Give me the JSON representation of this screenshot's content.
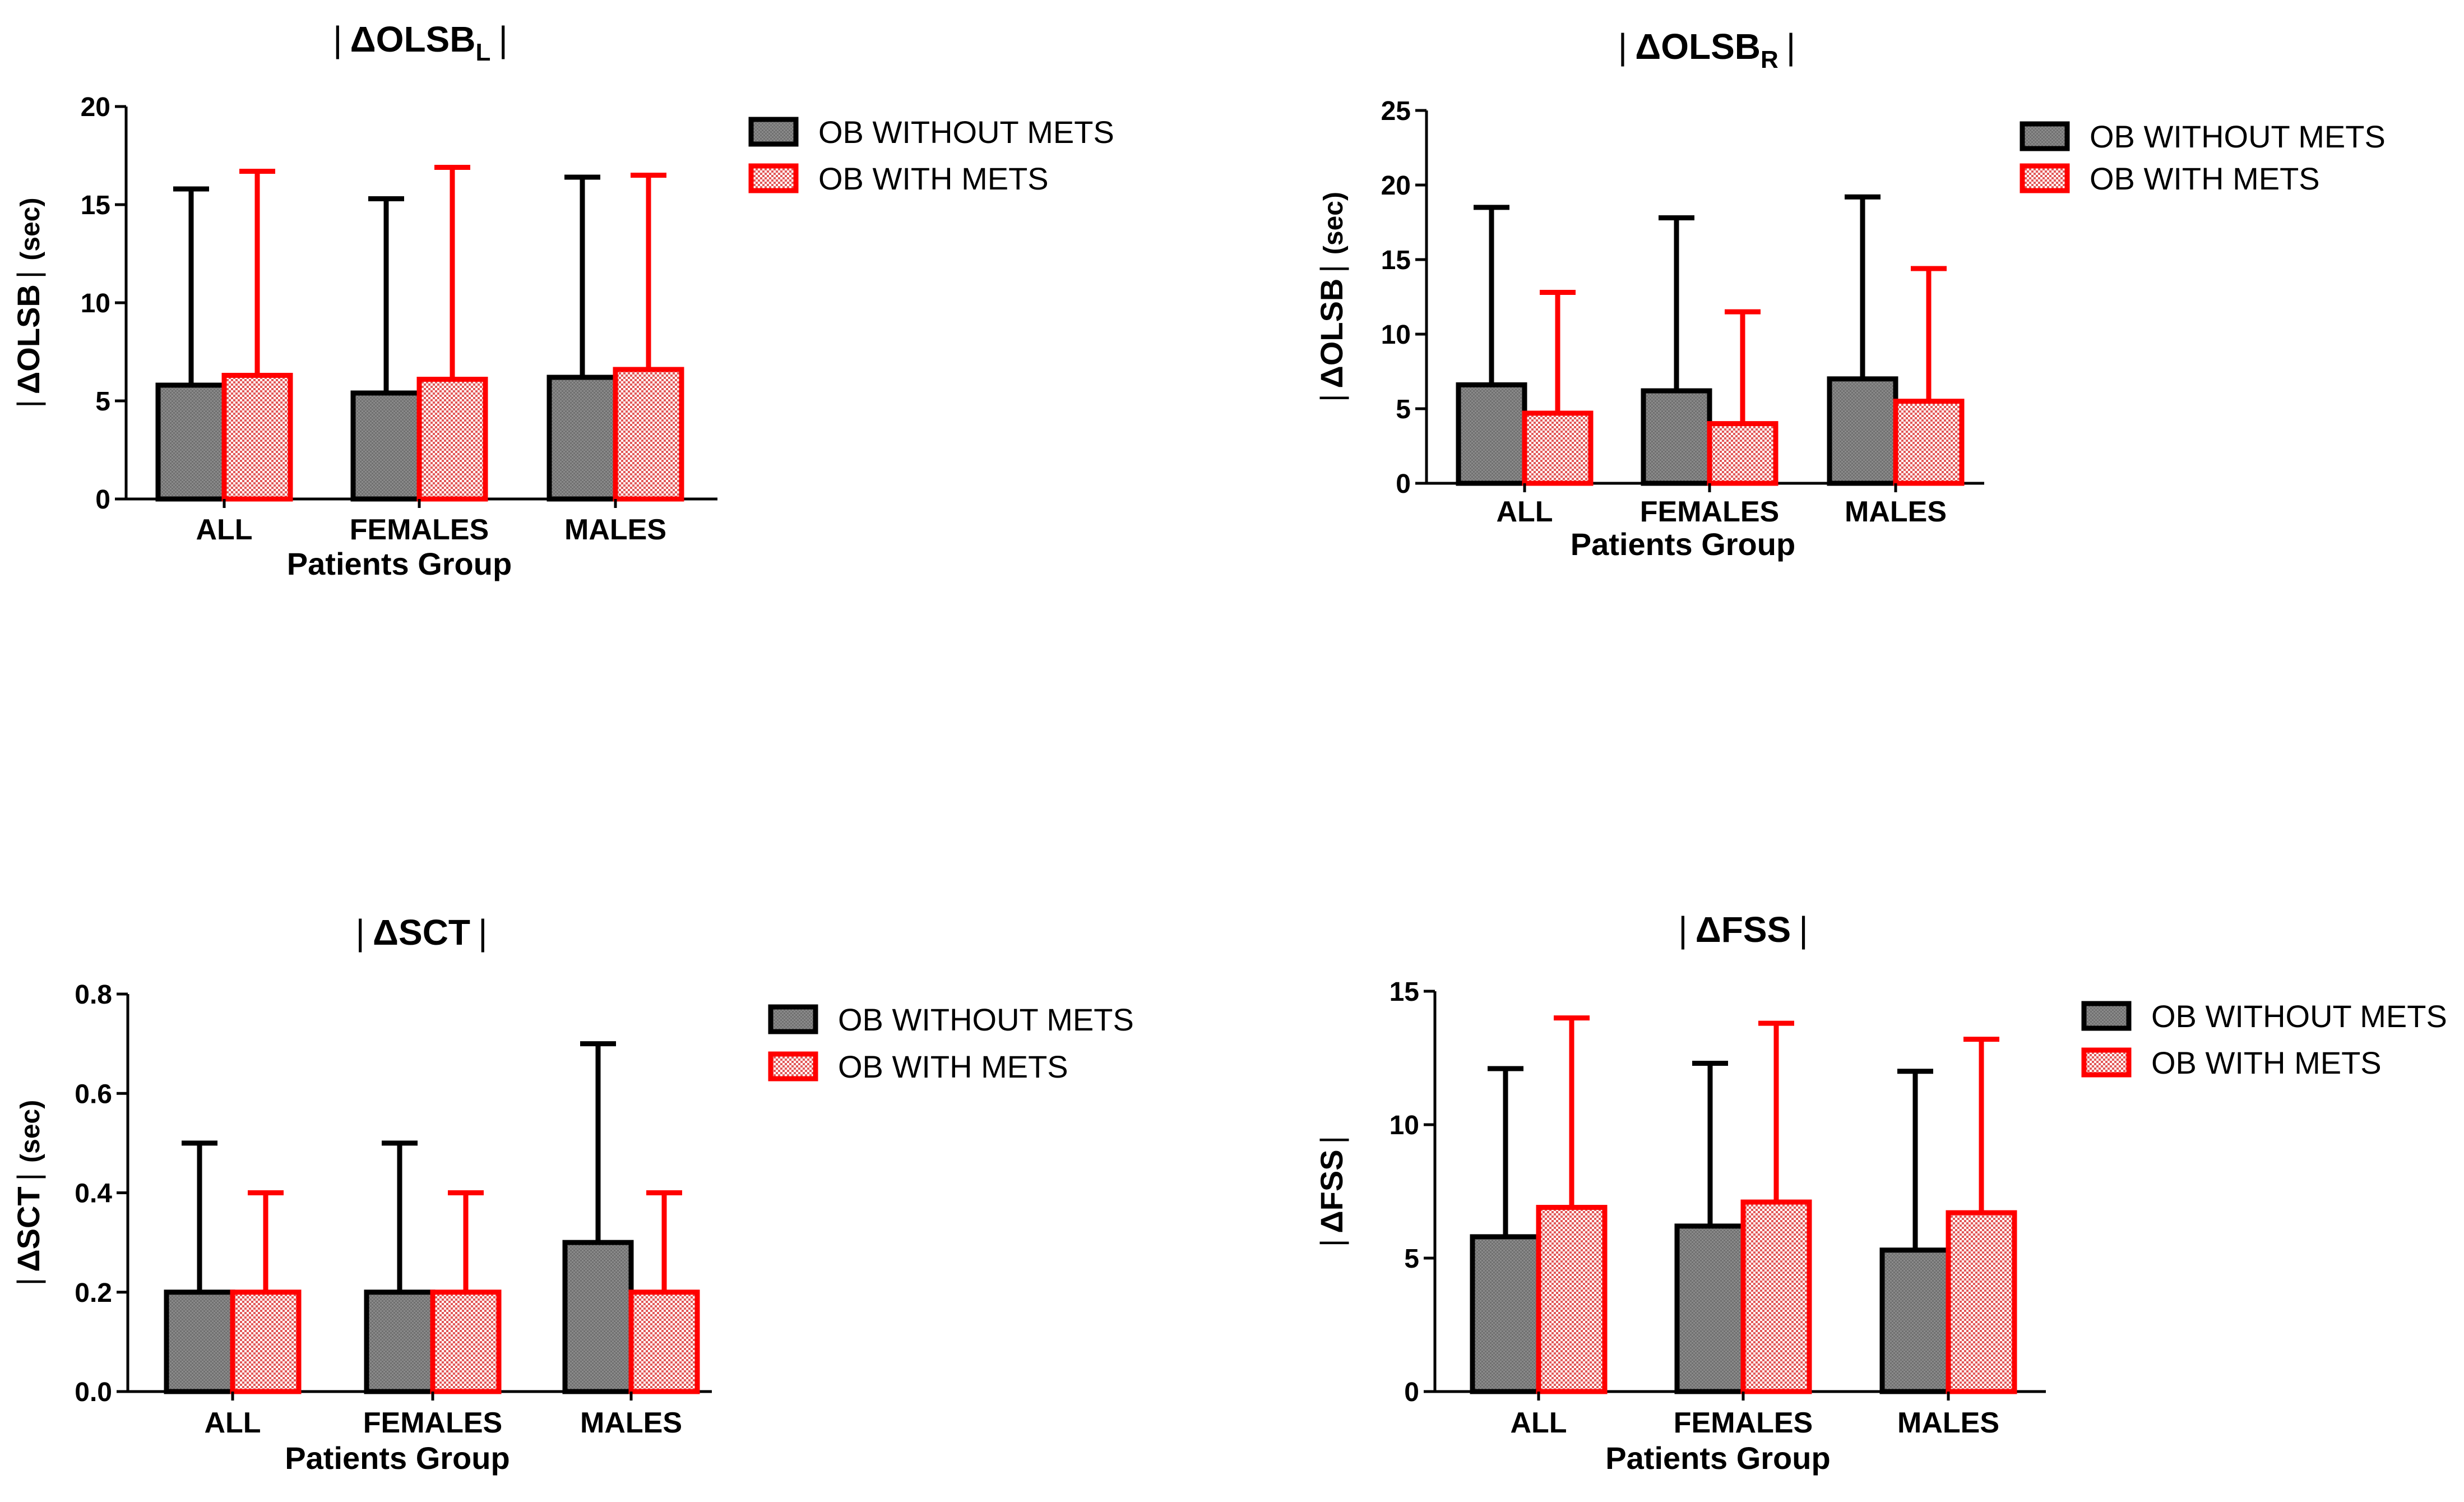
{
  "colors": {
    "without": "#808080",
    "without_stroke": "#000000",
    "with": "#f2b8b8",
    "with_stroke": "#ff0000"
  },
  "chart_data": [
    {
      "type": "bar",
      "title": "ΔOLSB",
      "title_sub": "L",
      "ylabel": "ΔOLSB",
      "ylabel_unit": "(sec)",
      "xlabel": "Patients Group",
      "categories": [
        "ALL",
        "FEMALES",
        "MALES"
      ],
      "ylim": [
        0,
        20
      ],
      "yticks": [
        0,
        5,
        10,
        15,
        20
      ],
      "series": [
        {
          "name": "OB WITHOUT METS",
          "values": [
            5.8,
            5.4,
            6.2
          ],
          "errors": [
            15.8,
            15.3,
            16.4
          ]
        },
        {
          "name": "OB WITH METS",
          "values": [
            6.3,
            6.1,
            6.6
          ],
          "errors": [
            16.7,
            16.9,
            16.5
          ]
        }
      ]
    },
    {
      "type": "bar",
      "title": "ΔOLSB",
      "title_sub": "R",
      "ylabel": "ΔOLSB",
      "ylabel_unit": "(sec)",
      "xlabel": "Patients Group",
      "categories": [
        "ALL",
        "FEMALES",
        "MALES"
      ],
      "ylim": [
        0,
        25
      ],
      "yticks": [
        0,
        5,
        10,
        15,
        20,
        25
      ],
      "series": [
        {
          "name": "OB WITHOUT METS",
          "values": [
            6.6,
            6.2,
            7.0
          ],
          "errors": [
            18.5,
            17.8,
            19.2
          ]
        },
        {
          "name": "OB WITH METS",
          "values": [
            4.7,
            4.0,
            5.5
          ],
          "errors": [
            12.8,
            11.5,
            14.4
          ]
        }
      ]
    },
    {
      "type": "bar",
      "title": "ΔSCT",
      "title_sub": "",
      "ylabel": "ΔSCT",
      "ylabel_unit": "(sec)",
      "xlabel": "Patients Group",
      "categories": [
        "ALL",
        "FEMALES",
        "MALES"
      ],
      "ylim": [
        0,
        0.8
      ],
      "yticks": [
        "0.0",
        "0.2",
        "0.4",
        "0.6",
        "0.8"
      ],
      "series": [
        {
          "name": "OB WITHOUT METS",
          "values": [
            0.2,
            0.2,
            0.3
          ],
          "errors": [
            0.5,
            0.5,
            0.7
          ]
        },
        {
          "name": "OB WITH METS",
          "values": [
            0.2,
            0.2,
            0.2
          ],
          "errors": [
            0.4,
            0.4,
            0.4
          ]
        }
      ]
    },
    {
      "type": "bar",
      "title": "ΔFSS",
      "title_sub": "",
      "ylabel": "ΔFSS",
      "ylabel_unit": "",
      "xlabel": "Patients Group",
      "categories": [
        "ALL",
        "FEMALES",
        "MALES"
      ],
      "ylim": [
        0,
        15
      ],
      "yticks": [
        0,
        5,
        10,
        15
      ],
      "series": [
        {
          "name": "OB WITHOUT METS",
          "values": [
            5.8,
            6.2,
            5.3
          ],
          "errors": [
            12.1,
            12.3,
            12.0
          ]
        },
        {
          "name": "OB WITH METS",
          "values": [
            6.9,
            7.1,
            6.7
          ],
          "errors": [
            14.0,
            13.8,
            13.2
          ]
        }
      ]
    }
  ]
}
